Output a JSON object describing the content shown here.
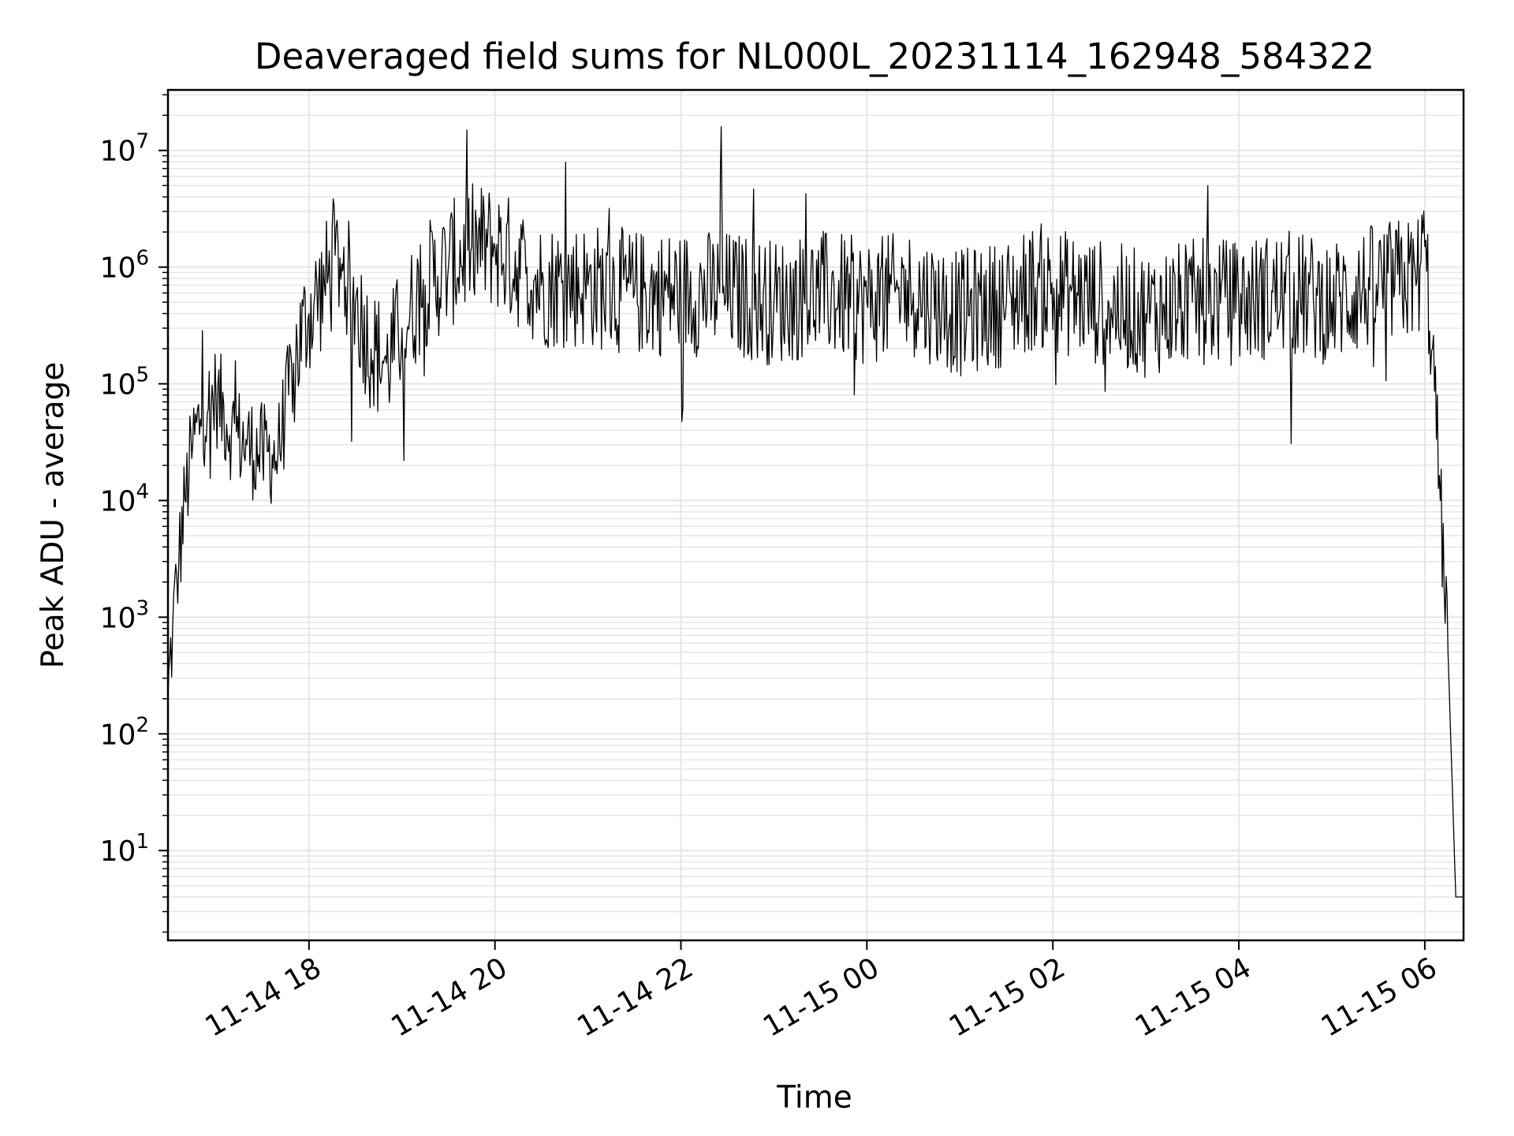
{
  "chart_data": {
    "type": "line",
    "title": "Deaveraged field sums for NL000L_20231114_162948_584322",
    "xlabel": "Time",
    "ylabel": "Peak ADU - average",
    "yscale": "log",
    "xlim": [
      "2023-11-14 16:29",
      "2023-11-15 06:25"
    ],
    "ylim": [
      1.7,
      33000000
    ],
    "grid": "on (major and minor)",
    "x_tick_labels": [
      "11-14 18",
      "11-14 20",
      "11-14 22",
      "11-15 00",
      "11-15 02",
      "11-15 04",
      "11-15 06"
    ],
    "y_tick_labels": [
      {
        "base": "10",
        "exp": "1"
      },
      {
        "base": "10",
        "exp": "2"
      },
      {
        "base": "10",
        "exp": "3"
      },
      {
        "base": "10",
        "exp": "4"
      },
      {
        "base": "10",
        "exp": "5"
      },
      {
        "base": "10",
        "exp": "6"
      },
      {
        "base": "10",
        "exp": "7"
      }
    ],
    "series_color": "#000000",
    "grid_color": "#e6e6e6",
    "series": [
      {
        "values_description_free": true,
        "x": [
          "2023-11-14 16:29",
          "2023-11-14 16:32",
          "2023-11-14 16:36",
          "2023-11-14 16:40",
          "2023-11-14 16:45",
          "2023-11-14 16:50",
          "2023-11-14 16:55",
          "2023-11-14 17:00",
          "2023-11-14 17:10",
          "2023-11-14 17:20",
          "2023-11-14 17:30",
          "2023-11-14 17:40",
          "2023-11-14 17:50",
          "2023-11-14 18:00",
          "2023-11-14 18:10",
          "2023-11-14 18:20",
          "2023-11-14 18:30",
          "2023-11-14 18:40",
          "2023-11-14 18:50",
          "2023-11-14 19:00",
          "2023-11-14 19:15",
          "2023-11-14 19:30",
          "2023-11-14 19:45",
          "2023-11-14 20:00",
          "2023-11-14 20:30",
          "2023-11-14 21:00",
          "2023-11-14 21:30",
          "2023-11-14 22:00",
          "2023-11-14 22:25",
          "2023-11-14 22:26",
          "2023-11-14 22:27",
          "2023-11-14 23:00",
          "2023-11-14 23:30",
          "2023-11-15 00:00",
          "2023-11-15 00:30",
          "2023-11-15 01:00",
          "2023-11-15 01:30",
          "2023-11-15 01:50",
          "2023-11-15 02:30",
          "2023-11-15 03:00",
          "2023-11-15 03:30",
          "2023-11-15 04:00",
          "2023-11-15 04:30",
          "2023-11-15 05:00",
          "2023-11-15 05:30",
          "2023-11-15 05:55",
          "2023-11-15 06:00",
          "2023-11-15 06:05",
          "2023-11-15 06:10",
          "2023-11-15 06:15",
          "2023-11-15 06:20",
          "2023-11-15 06:25"
        ],
        "y": [
          200,
          800,
          3000,
          10000,
          30000,
          50000,
          60000,
          80000,
          40000,
          30000,
          25000,
          25000,
          150000,
          400000,
          700000,
          1200000,
          500000,
          200000,
          150000,
          300000,
          700000,
          1000000,
          1500000,
          1500000,
          700000,
          700000,
          600000,
          600000,
          600000,
          16000000,
          600000,
          500000,
          600000,
          500000,
          600000,
          400000,
          500000,
          700000,
          500000,
          400000,
          500000,
          500000,
          600000,
          500000,
          700000,
          800000,
          1500000,
          200000,
          10000,
          500,
          4,
          4
        ]
      }
    ]
  }
}
